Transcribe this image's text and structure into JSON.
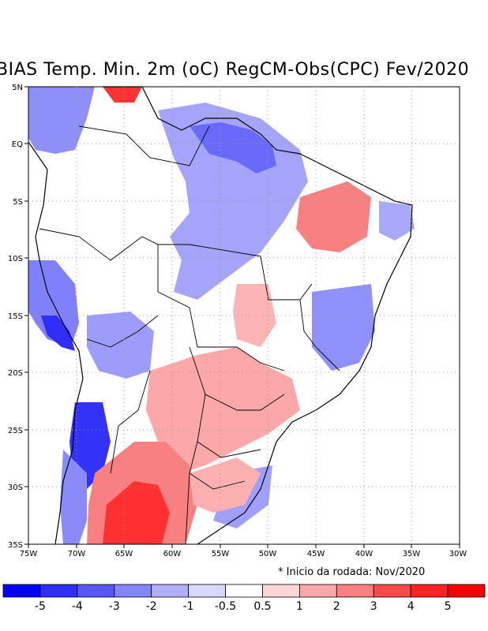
{
  "title": "BIAS Temp. Min. 2m (oC) RegCM-Obs(CPC) Fev/2020",
  "footnote": "* Inicio da rodada: Nov/2020",
  "map": {
    "lat_labels": [
      "5N",
      "EQ",
      "5S",
      "10S",
      "15S",
      "20S",
      "25S",
      "30S",
      "35S"
    ],
    "lon_labels": [
      "75W",
      "70W",
      "65W",
      "60W",
      "55W",
      "50W",
      "45W",
      "40W",
      "35W",
      "30W"
    ],
    "lon_range": [
      -75,
      -30
    ],
    "lat_range": [
      -35,
      5
    ],
    "gridlines": "dotted"
  },
  "colorbar": {
    "labels": [
      "-5",
      "-4",
      "-3",
      "-2",
      "-1",
      "-0.5",
      "0.5",
      "1",
      "2",
      "3",
      "4",
      "5"
    ],
    "colors": [
      "#0000ff",
      "#2e2ef8",
      "#5858fa",
      "#8585fa",
      "#b0b0fa",
      "#d8d8fc",
      "#ffffff",
      "#fdd6d6",
      "#fca8a8",
      "#f98080",
      "#f94a4a",
      "#fe2424",
      "#ff0000"
    ]
  },
  "legend_colors": {
    "strong_warm": "#ff2020",
    "warm": "#f98080",
    "light_warm": "#fca8a8",
    "cool": "#8585fa",
    "strong_cool": "#2e2ef8"
  }
}
